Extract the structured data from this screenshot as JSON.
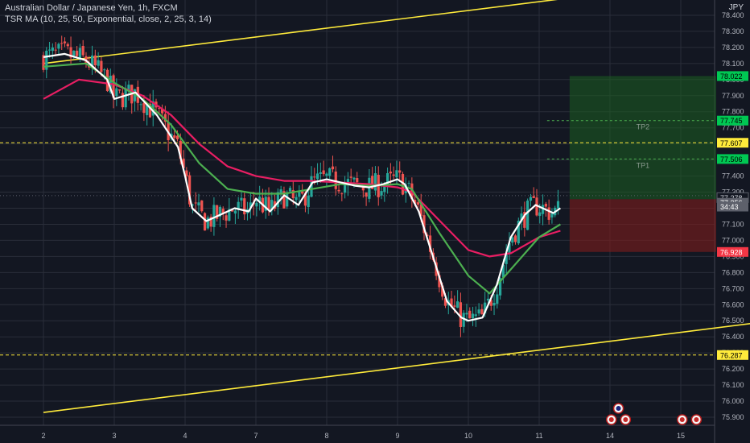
{
  "header": {
    "symbol_line": "Australian Dollar / Japanese Yen, 1h, FXCM",
    "indicator_line": "TSR MA (10, 25, 50, Exponential, close, 2, 25, 3, 14)",
    "currency": "JPY"
  },
  "colors": {
    "background": "#131722",
    "grid": "#2a2e39",
    "up_candle": "#26a69a",
    "down_candle": "#ef5350",
    "ma_fast": "#ffffff",
    "ma_mid": "#4caf50",
    "ma_slow": "#e91e63",
    "trendline": "#ffeb3b",
    "level_line": "#ffeb3b",
    "tp_line": "#4caf50",
    "profit_zone": "#1b5e20",
    "loss_zone": "#7f1d1d"
  },
  "chart_data": {
    "type": "candlestick",
    "x_ticks": [
      "2",
      "3",
      "4",
      "7",
      "8",
      "9",
      "10",
      "11",
      "14",
      "15"
    ],
    "y_ticks": [
      "78.400",
      "78.300",
      "78.200",
      "78.100",
      "78.000",
      "77.900",
      "77.800",
      "77.700",
      "77.600",
      "77.500",
      "77.400",
      "77.300",
      "77.200",
      "77.100",
      "77.000",
      "76.900",
      "76.800",
      "76.700",
      "76.600",
      "76.500",
      "76.400",
      "76.300",
      "76.200",
      "76.100",
      "76.000",
      "75.900"
    ],
    "ylim": [
      75.85,
      78.52
    ],
    "ma_fast_path": [
      [
        0,
        78.14
      ],
      [
        0.3,
        78.16
      ],
      [
        0.6,
        78.12
      ],
      [
        0.9,
        78.0
      ],
      [
        1.0,
        77.88
      ],
      [
        1.3,
        77.92
      ],
      [
        1.6,
        77.78
      ],
      [
        1.9,
        77.58
      ],
      [
        2.0,
        77.4
      ],
      [
        2.1,
        77.2
      ],
      [
        2.3,
        77.12
      ],
      [
        2.5,
        77.16
      ],
      [
        2.7,
        77.2
      ],
      [
        2.9,
        77.18
      ],
      [
        3.0,
        77.26
      ],
      [
        3.2,
        77.18
      ],
      [
        3.4,
        77.28
      ],
      [
        3.6,
        77.22
      ],
      [
        3.8,
        77.36
      ],
      [
        4.0,
        77.38
      ],
      [
        4.2,
        77.36
      ],
      [
        4.4,
        77.34
      ],
      [
        4.6,
        77.33
      ],
      [
        4.8,
        77.35
      ],
      [
        5.0,
        77.38
      ],
      [
        5.1,
        77.35
      ],
      [
        5.3,
        77.18
      ],
      [
        5.5,
        76.9
      ],
      [
        5.7,
        76.62
      ],
      [
        5.9,
        76.52
      ],
      [
        6.0,
        76.5
      ],
      [
        6.2,
        76.52
      ],
      [
        6.4,
        76.72
      ],
      [
        6.6,
        77.02
      ],
      [
        6.8,
        77.16
      ],
      [
        6.95,
        77.22
      ],
      [
        7.05,
        77.2
      ],
      [
        7.2,
        77.17
      ],
      [
        7.3,
        77.2
      ]
    ],
    "ma_mid_path": [
      [
        0,
        78.08
      ],
      [
        0.6,
        78.1
      ],
      [
        1.0,
        77.98
      ],
      [
        1.4,
        77.88
      ],
      [
        1.8,
        77.72
      ],
      [
        2.2,
        77.48
      ],
      [
        2.6,
        77.32
      ],
      [
        3.0,
        77.29
      ],
      [
        3.4,
        77.29
      ],
      [
        3.8,
        77.32
      ],
      [
        4.2,
        77.35
      ],
      [
        4.6,
        77.34
      ],
      [
        5.0,
        77.35
      ],
      [
        5.2,
        77.32
      ],
      [
        5.6,
        77.04
      ],
      [
        6.0,
        76.78
      ],
      [
        6.3,
        76.67
      ],
      [
        6.6,
        76.82
      ],
      [
        7.0,
        77.02
      ],
      [
        7.3,
        77.1
      ]
    ],
    "ma_slow_path": [
      [
        0,
        77.88
      ],
      [
        0.5,
        78.0
      ],
      [
        1.0,
        77.97
      ],
      [
        1.4,
        77.9
      ],
      [
        1.8,
        77.78
      ],
      [
        2.2,
        77.6
      ],
      [
        2.6,
        77.46
      ],
      [
        3.0,
        77.4
      ],
      [
        3.4,
        77.37
      ],
      [
        3.8,
        77.37
      ],
      [
        4.2,
        77.36
      ],
      [
        4.6,
        77.35
      ],
      [
        5.0,
        77.33
      ],
      [
        5.2,
        77.3
      ],
      [
        5.6,
        77.12
      ],
      [
        6.0,
        76.94
      ],
      [
        6.3,
        76.9
      ],
      [
        6.6,
        76.92
      ],
      [
        7.0,
        77.02
      ],
      [
        7.3,
        77.06
      ]
    ],
    "trendline_upper": [
      [
        0,
        78.1
      ],
      [
        9.1,
        78.6
      ]
    ],
    "trendline_lower": [
      [
        0,
        75.93
      ],
      [
        10.3,
        76.5
      ]
    ],
    "levels": [
      {
        "name": "resistance",
        "value": 77.607,
        "label": "77.607",
        "style": "dashed"
      },
      {
        "name": "support",
        "value": 76.287,
        "label": "76.287",
        "style": "dashed"
      }
    ],
    "take_profit_lines": [
      {
        "label": "TP2",
        "value": 77.745,
        "price_label": "77.745"
      },
      {
        "label": "TP1",
        "value": 77.506,
        "price_label": "77.506"
      }
    ],
    "position": {
      "entry": 77.256,
      "entry_label": "77.256",
      "target": 78.022,
      "target_label": "78.022",
      "stop": 76.928,
      "stop_label": "76.928",
      "x_start": 7.43,
      "x_end": 9.5
    },
    "price_tags": [
      {
        "value": 77.278,
        "label": "77.278",
        "bg": "#131722",
        "fg": "#d1d4dc",
        "border": "#5d606b"
      },
      {
        "value": 77.256,
        "label": "77.256",
        "bg": "#5d606b",
        "fg": "#ffffff"
      },
      {
        "value": 77.22,
        "label": "34:43",
        "bg": "#5d606b",
        "fg": "#ffffff"
      }
    ],
    "event_icons": [
      {
        "x": 8.12,
        "row": 1,
        "name": "au-flag-icon"
      },
      {
        "x": 8.02,
        "row": 2,
        "name": "event-icon"
      },
      {
        "x": 8.22,
        "row": 2,
        "name": "event-icon"
      },
      {
        "x": 9.02,
        "row": 2,
        "name": "event-icon"
      },
      {
        "x": 9.22,
        "row": 2,
        "name": "event-icon"
      },
      {
        "x": 10.12,
        "row": 2,
        "name": "au-flag-icon"
      }
    ]
  }
}
